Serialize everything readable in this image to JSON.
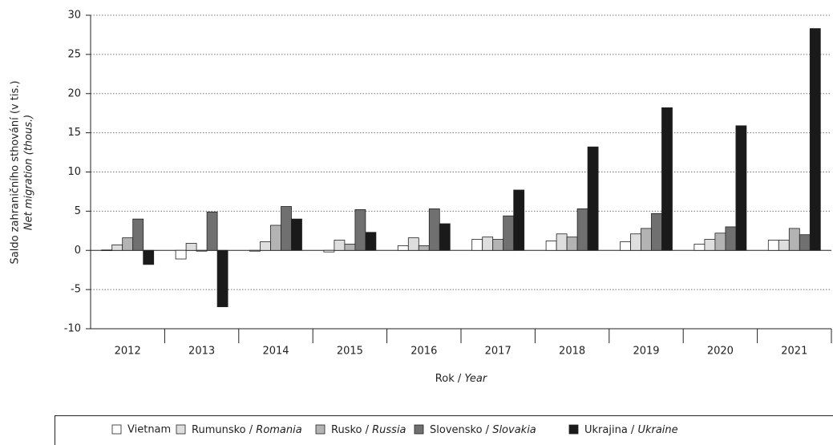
{
  "chart_data": {
    "type": "bar",
    "y_label": [
      "Saldo zahraničního sthování (v tis.)",
      "Net migration (thous.)"
    ],
    "x_label": "Rok / Year",
    "categories": [
      "2012",
      "2013",
      "2014",
      "2015",
      "2016",
      "2017",
      "2018",
      "2019",
      "2020",
      "2021"
    ],
    "series": [
      {
        "name": "Vietnam",
        "color": "#ffffff",
        "values": [
          0.05,
          -1.1,
          -0.1,
          -0.2,
          0.6,
          1.4,
          1.2,
          1.1,
          0.8,
          1.3
        ]
      },
      {
        "name": "Rumunsko / Romania",
        "color": "#dedede",
        "values": [
          0.7,
          0.9,
          1.1,
          1.3,
          1.6,
          1.7,
          2.1,
          2.1,
          1.4,
          1.3
        ]
      },
      {
        "name": "Rusko / Russia",
        "color": "#b3b3b3",
        "values": [
          1.6,
          -0.1,
          3.2,
          0.8,
          0.6,
          1.4,
          1.7,
          2.8,
          2.2,
          2.8
        ]
      },
      {
        "name": "Slovensko / Slovakia",
        "color": "#707070",
        "values": [
          4.0,
          4.9,
          5.6,
          5.2,
          5.3,
          4.4,
          5.3,
          4.7,
          3.0,
          2.0
        ]
      },
      {
        "name": "Ukrajina / Ukraine",
        "color": "#1a1a1a",
        "values": [
          -1.8,
          -7.2,
          4.0,
          2.3,
          3.4,
          7.7,
          13.2,
          18.2,
          15.9,
          28.3
        ]
      }
    ],
    "ylim": [
      -10,
      30
    ],
    "yticks": [
      -10,
      -5,
      0,
      5,
      10,
      15,
      20,
      25,
      30
    ],
    "grid": true,
    "legend": "bottom"
  }
}
